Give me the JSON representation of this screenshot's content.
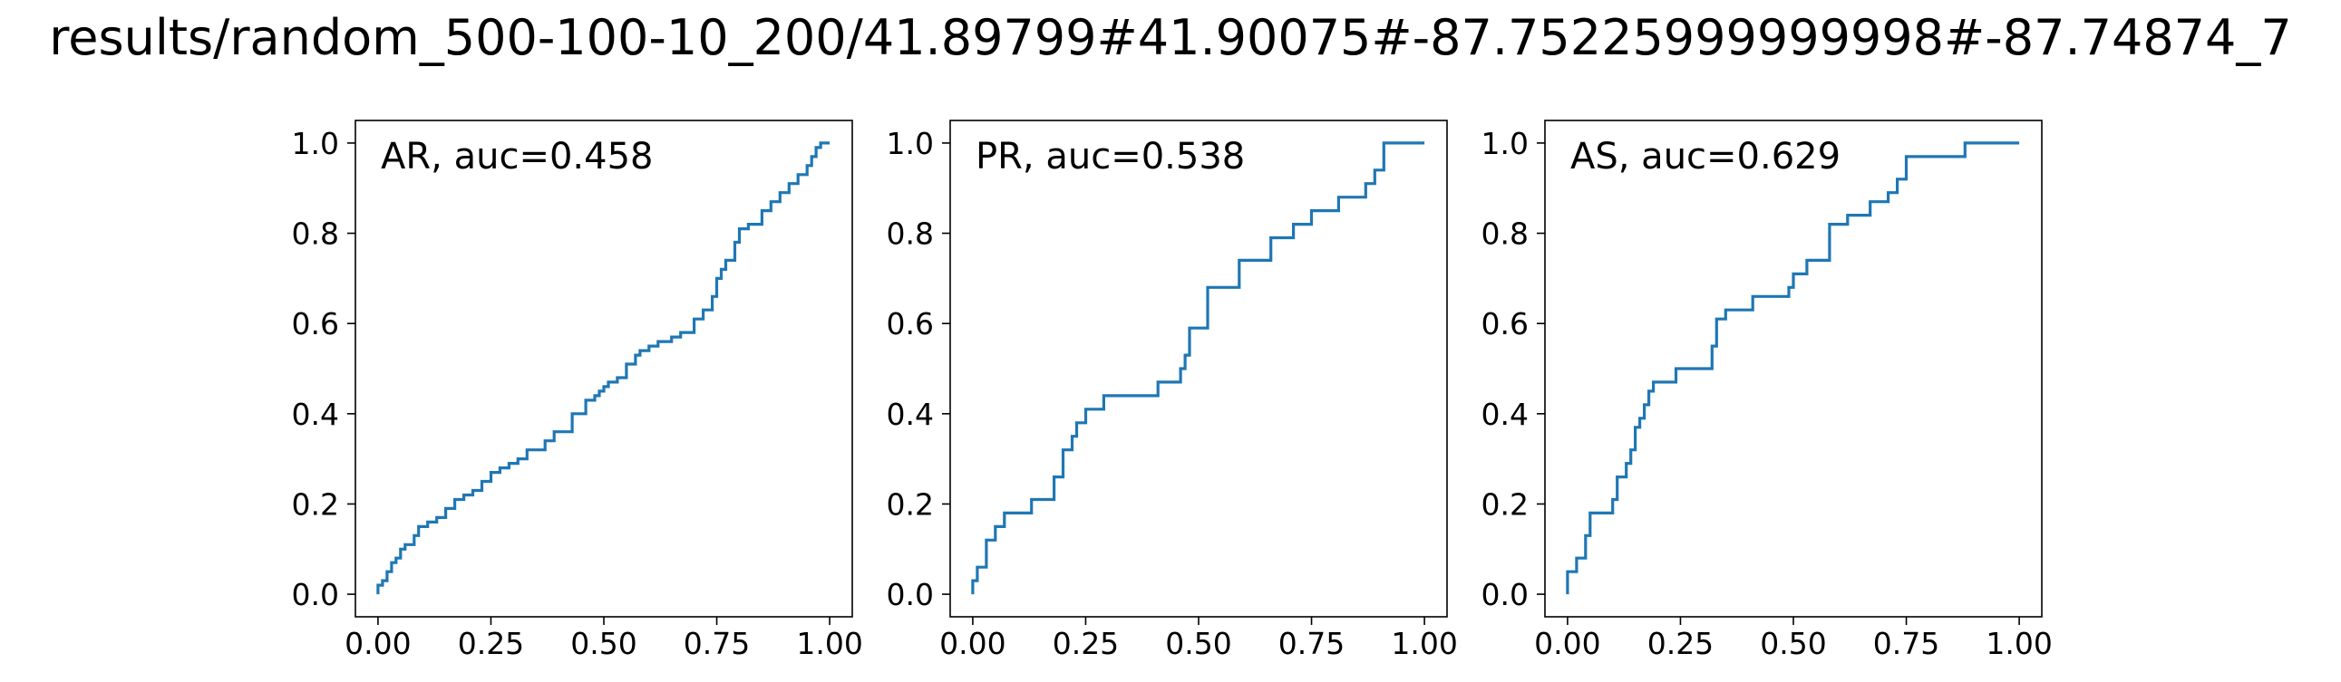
{
  "figure_title": "results/random_500-100-10_200/41.89799#41.90075#-87.75225999999998#-87.74874_7",
  "chart_data": [
    {
      "type": "line",
      "step": true,
      "title": "AR, auc=0.458",
      "xlabel": "",
      "ylabel": "",
      "xlim": [
        0,
        1
      ],
      "ylim": [
        0,
        1
      ],
      "xticks": [
        "0.00",
        "0.25",
        "0.50",
        "0.75",
        "1.00"
      ],
      "yticks": [
        "0.0",
        "0.2",
        "0.4",
        "0.6",
        "0.8",
        "1.0"
      ],
      "line_color": "#1f77b4",
      "series": [
        {
          "x": [
            0.0,
            0.01,
            0.02,
            0.03,
            0.04,
            0.05,
            0.06,
            0.08,
            0.09,
            0.11,
            0.13,
            0.15,
            0.17,
            0.19,
            0.21,
            0.23,
            0.25,
            0.27,
            0.29,
            0.31,
            0.33,
            0.37,
            0.39,
            0.41,
            0.43,
            0.46,
            0.48,
            0.49,
            0.5,
            0.51,
            0.53,
            0.55,
            0.57,
            0.58,
            0.6,
            0.62,
            0.65,
            0.67,
            0.7,
            0.72,
            0.74,
            0.75,
            0.76,
            0.77,
            0.79,
            0.8,
            0.82,
            0.85,
            0.87,
            0.89,
            0.91,
            0.93,
            0.95,
            0.96,
            0.97,
            0.98,
            1.0
          ],
          "y": [
            0.0,
            0.02,
            0.03,
            0.05,
            0.07,
            0.08,
            0.1,
            0.11,
            0.13,
            0.15,
            0.16,
            0.17,
            0.19,
            0.21,
            0.22,
            0.23,
            0.25,
            0.27,
            0.28,
            0.29,
            0.3,
            0.32,
            0.34,
            0.36,
            0.36,
            0.4,
            0.43,
            0.44,
            0.45,
            0.46,
            0.47,
            0.48,
            0.51,
            0.53,
            0.54,
            0.55,
            0.56,
            0.57,
            0.58,
            0.61,
            0.63,
            0.66,
            0.7,
            0.72,
            0.74,
            0.78,
            0.81,
            0.82,
            0.85,
            0.87,
            0.89,
            0.91,
            0.93,
            0.95,
            0.97,
            0.99,
            1.0
          ]
        }
      ]
    },
    {
      "type": "line",
      "step": true,
      "title": "PR, auc=0.538",
      "xlabel": "",
      "ylabel": "",
      "xlim": [
        0,
        1
      ],
      "ylim": [
        0,
        1
      ],
      "xticks": [
        "0.00",
        "0.25",
        "0.50",
        "0.75",
        "1.00"
      ],
      "yticks": [
        "0.0",
        "0.2",
        "0.4",
        "0.6",
        "0.8",
        "1.0"
      ],
      "line_color": "#1f77b4",
      "series": [
        {
          "x": [
            0.0,
            0.01,
            0.03,
            0.05,
            0.07,
            0.13,
            0.18,
            0.2,
            0.22,
            0.23,
            0.25,
            0.27,
            0.29,
            0.38,
            0.41,
            0.46,
            0.47,
            0.48,
            0.52,
            0.59,
            0.66,
            0.71,
            0.75,
            0.81,
            0.87,
            0.89,
            0.91,
            0.93,
            1.0
          ],
          "y": [
            0.0,
            0.03,
            0.06,
            0.12,
            0.15,
            0.18,
            0.21,
            0.26,
            0.32,
            0.35,
            0.38,
            0.41,
            0.41,
            0.44,
            0.44,
            0.47,
            0.5,
            0.53,
            0.59,
            0.68,
            0.74,
            0.79,
            0.82,
            0.85,
            0.88,
            0.91,
            0.94,
            1.0,
            1.0
          ]
        }
      ]
    },
    {
      "type": "line",
      "step": true,
      "title": "AS, auc=0.629",
      "xlabel": "",
      "ylabel": "",
      "xlim": [
        0,
        1
      ],
      "ylim": [
        0,
        1
      ],
      "xticks": [
        "0.00",
        "0.25",
        "0.50",
        "0.75",
        "1.00"
      ],
      "yticks": [
        "0.0",
        "0.2",
        "0.4",
        "0.6",
        "0.8",
        "1.0"
      ],
      "line_color": "#1f77b4",
      "series": [
        {
          "x": [
            0.0,
            0.02,
            0.04,
            0.05,
            0.1,
            0.11,
            0.13,
            0.14,
            0.15,
            0.16,
            0.17,
            0.18,
            0.19,
            0.2,
            0.21,
            0.24,
            0.32,
            0.33,
            0.35,
            0.41,
            0.49,
            0.5,
            0.53,
            0.58,
            0.62,
            0.67,
            0.71,
            0.73,
            0.75,
            0.88,
            0.97,
            1.0
          ],
          "y": [
            0.0,
            0.05,
            0.08,
            0.13,
            0.18,
            0.21,
            0.26,
            0.29,
            0.32,
            0.37,
            0.39,
            0.42,
            0.45,
            0.47,
            0.47,
            0.47,
            0.5,
            0.55,
            0.61,
            0.63,
            0.66,
            0.68,
            0.71,
            0.74,
            0.82,
            0.84,
            0.87,
            0.89,
            0.92,
            0.97,
            1.0,
            1.0
          ]
        }
      ]
    }
  ]
}
